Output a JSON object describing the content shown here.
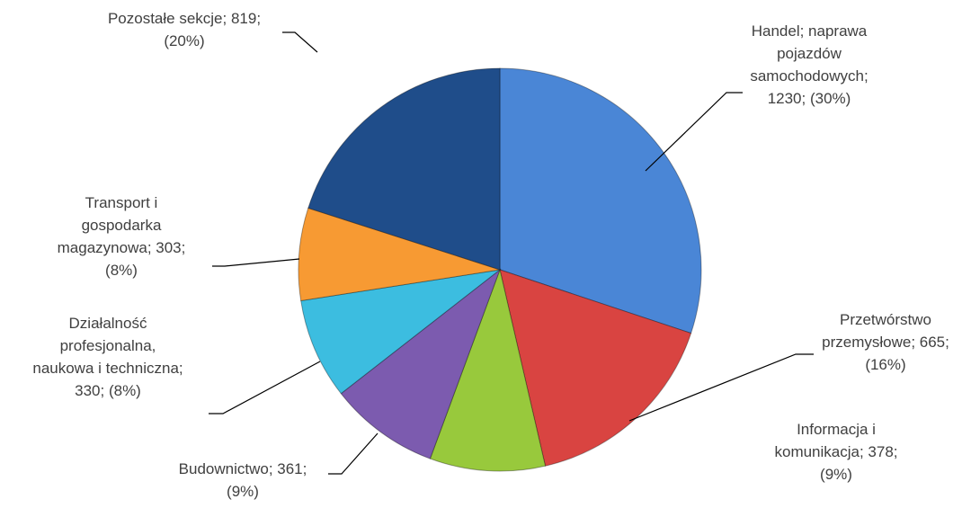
{
  "chart_data": {
    "type": "pie",
    "values": [
      1230,
      665,
      378,
      361,
      330,
      303,
      819
    ],
    "value_labels": [
      "Handel; naprawa\npojazdów\nsamochodowych;\n1230; (30%)",
      "Przetwórstwo\nprzemysłowe; 665;\n(16%)",
      "Informacja i\nkomunikacja; 378;\n(9%)",
      "Budownictwo; 361;\n(9%)",
      "Działalność\nprofesjonalna,\nnaukowa i techniczna;\n330; (8%)",
      "Transport i\ngospodarka\nmagazynowa; 303;\n(8%)",
      "Pozostałe sekcje; 819;\n(20%)"
    ],
    "colors": [
      "#4a86d6",
      "#d94441",
      "#98c93c",
      "#7c5baf",
      "#3cbde0",
      "#f79a33",
      "#1f4d8a"
    ]
  }
}
